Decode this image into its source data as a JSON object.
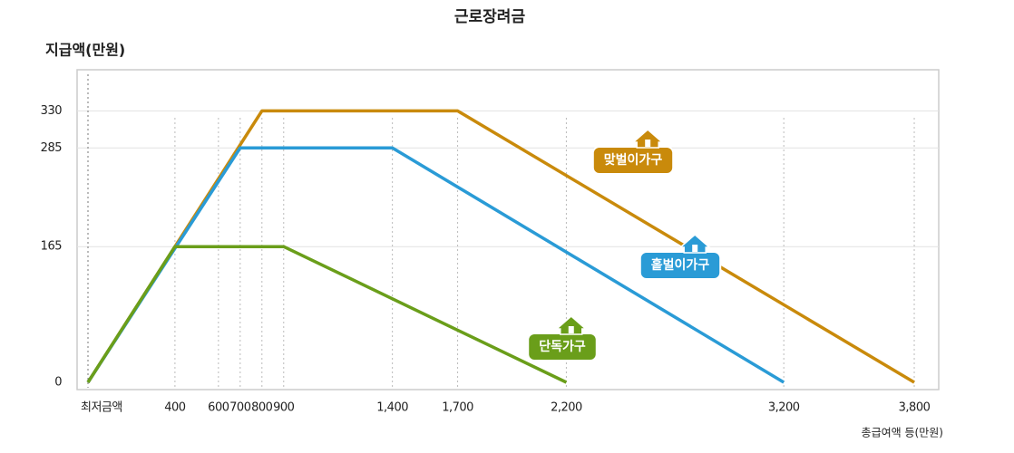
{
  "chart_data": {
    "type": "line",
    "title": "근로장려금",
    "y_label": "지급액(만원)",
    "x_label": "총급여액 등(만원)",
    "xlim": [
      0,
      3900
    ],
    "ylim": [
      0,
      380
    ],
    "xticks": [
      {
        "value": 0,
        "label": "최저금액"
      },
      400,
      600,
      700,
      800,
      900,
      {
        "value": 1400,
        "label": "1,400"
      },
      {
        "value": 1700,
        "label": "1,700"
      },
      {
        "value": 2200,
        "label": "2,200"
      },
      {
        "value": 3200,
        "label": "3,200"
      },
      {
        "value": 3800,
        "label": "3,800"
      }
    ],
    "yticks": [
      0,
      165,
      285,
      330
    ],
    "series": [
      {
        "name": "맞벌이가구",
        "color": "#c98a0b",
        "x": [
          0,
          800,
          1700,
          3800
        ],
        "values": [
          0,
          330,
          330,
          0
        ]
      },
      {
        "name": "홑벌이가구",
        "color": "#2a9bd6",
        "x": [
          0,
          700,
          1400,
          3200
        ],
        "values": [
          0,
          285,
          285,
          0
        ]
      },
      {
        "name": "단독가구",
        "color": "#6a9e1a",
        "x": [
          0,
          400,
          900,
          2200
        ],
        "values": [
          0,
          165,
          165,
          0
        ]
      }
    ]
  }
}
